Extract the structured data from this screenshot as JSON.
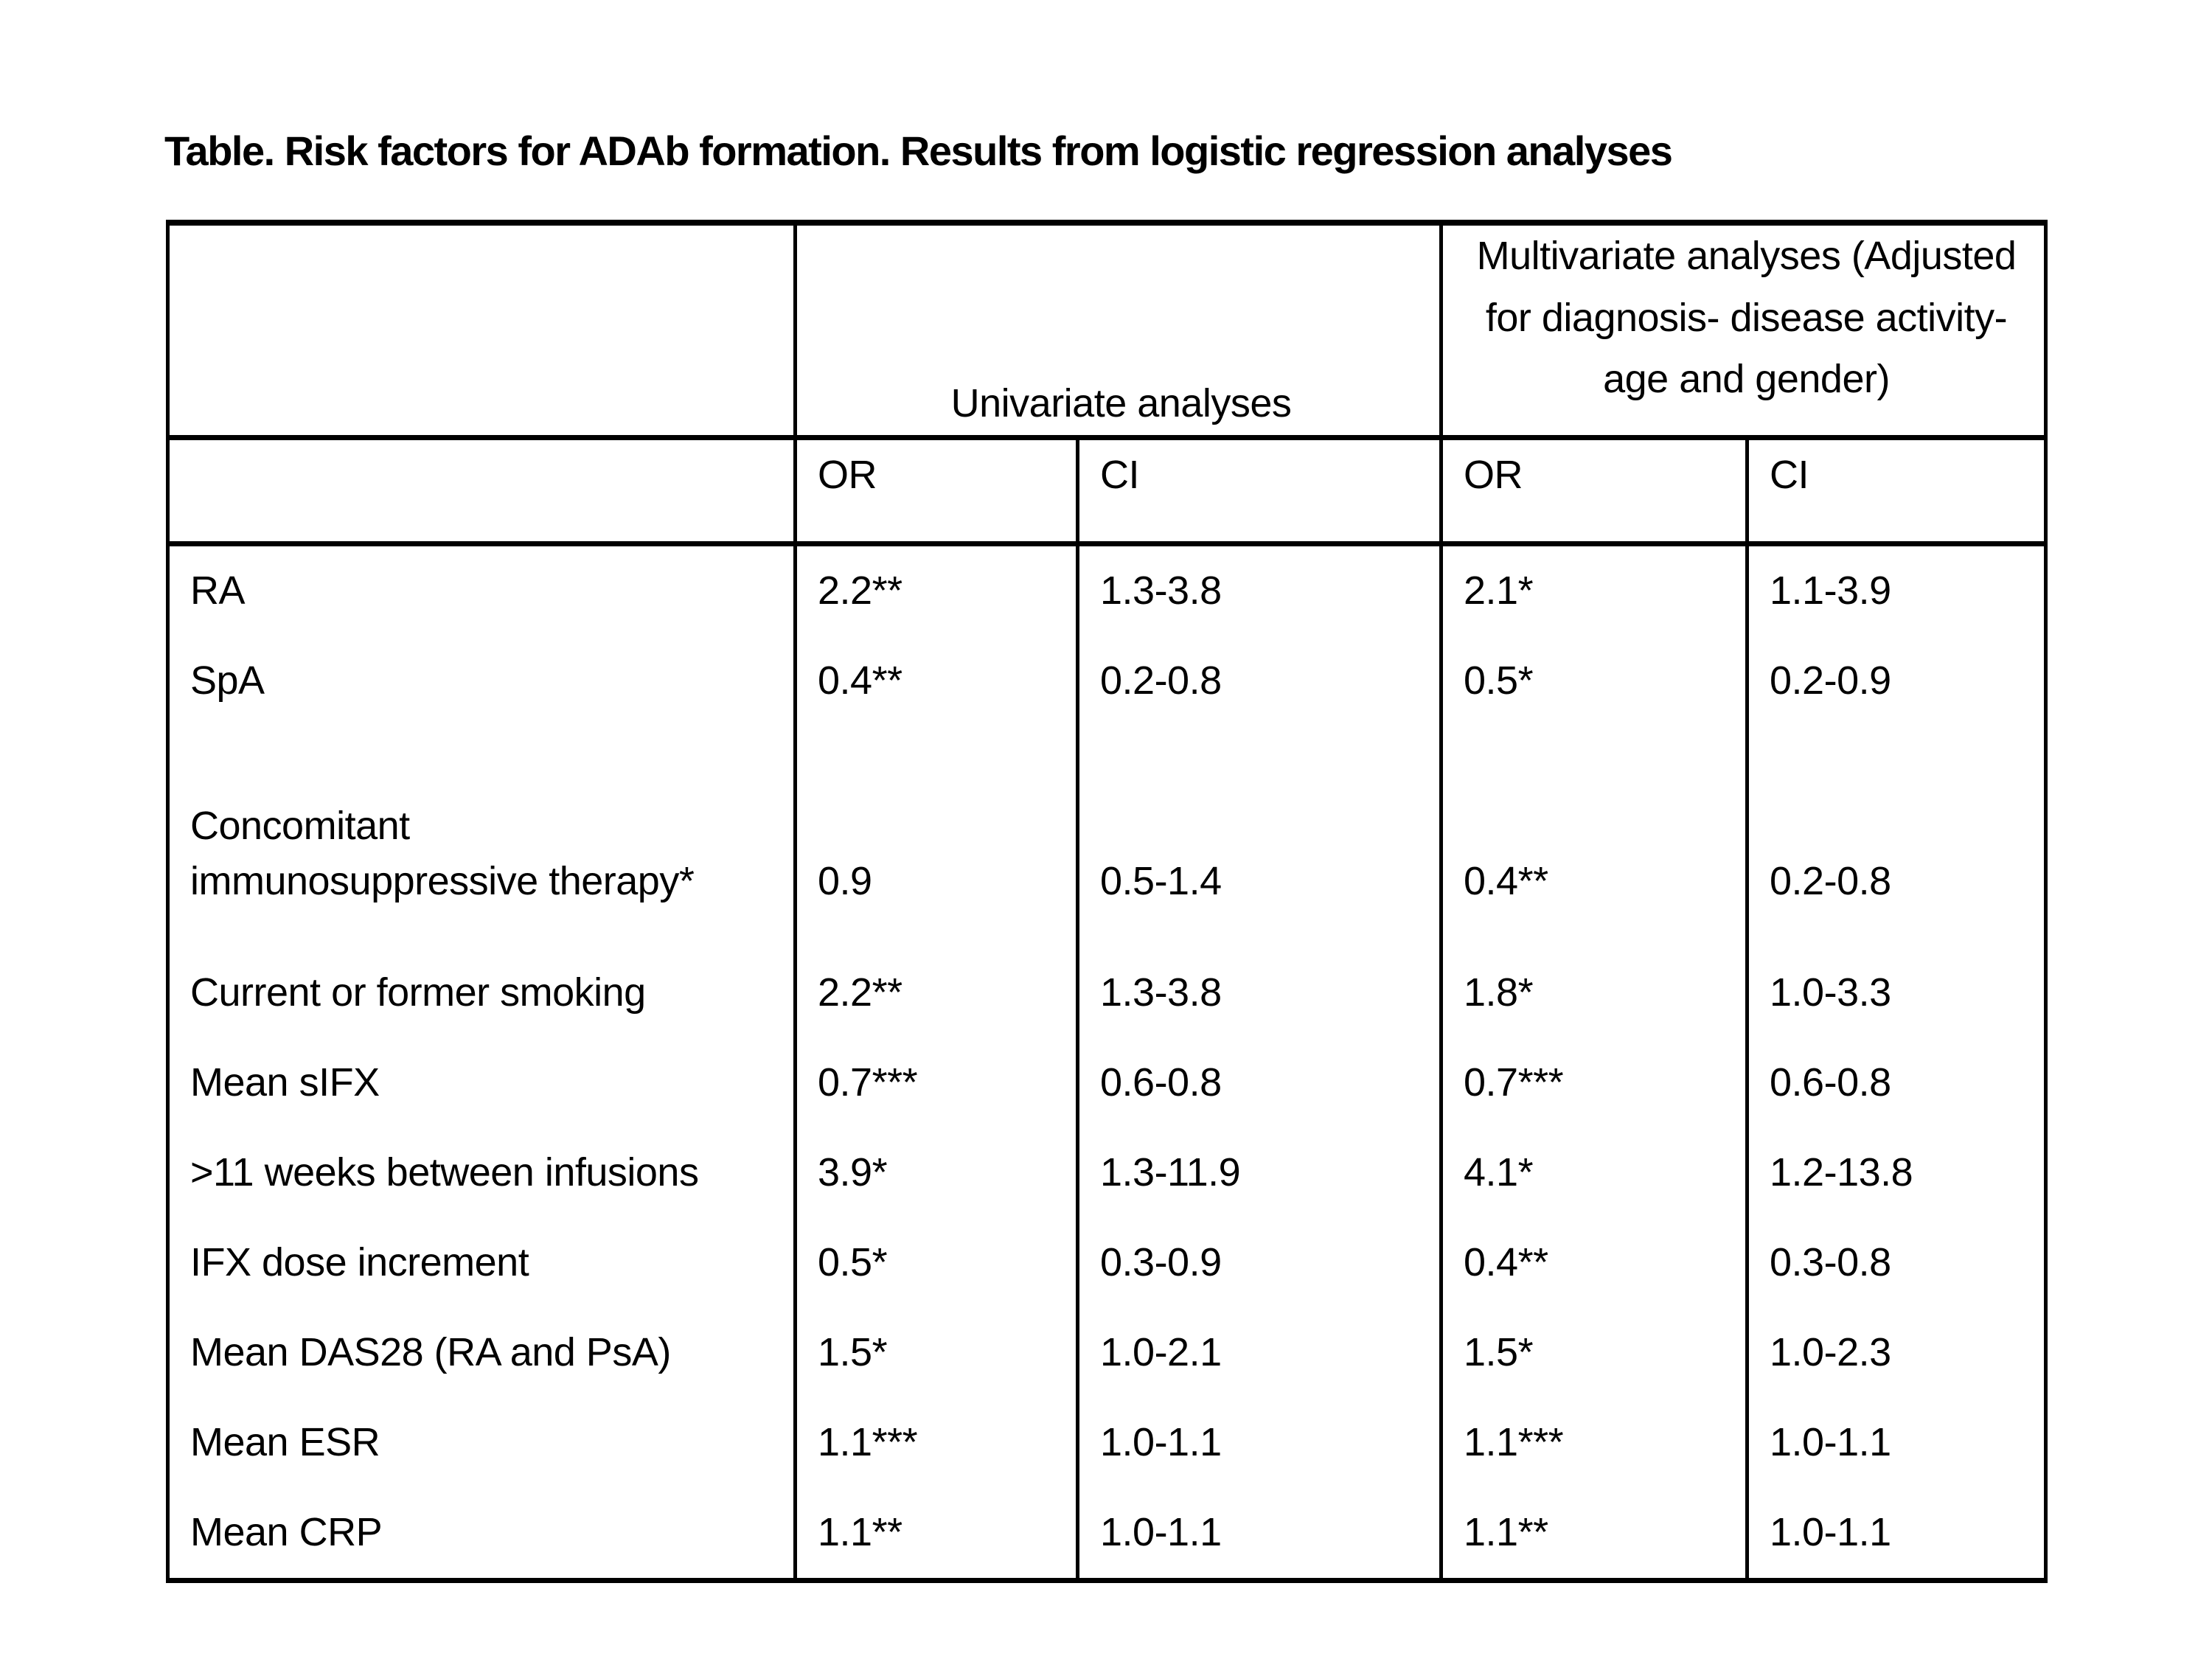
{
  "page": {
    "background_color": "#ffffff",
    "text_color": "#000000",
    "border_color": "#000000"
  },
  "title": "Table. Risk factors for ADAb formation. Results from logistic regression analyses",
  "table": {
    "header_groups": {
      "corner": "",
      "univariate": "Univariate analyses",
      "multivariate": "Multivariate analyses (Adjusted\nfor diagnosis- disease activity-\nage and gender)"
    },
    "sub_headers": [
      "OR",
      "CI",
      "OR",
      "CI"
    ],
    "rows": [
      {
        "label": "RA",
        "uni_or": "2.2**",
        "uni_ci": "1.3-3.8",
        "multi_or": "2.1*",
        "multi_ci": "1.1-3.9"
      },
      {
        "label": "SpA",
        "uni_or": "0.4**",
        "uni_ci": "0.2-0.8",
        "multi_or": "0.5*",
        "multi_ci": "0.2-0.9"
      },
      {
        "label": "Concomitant\nimmunosuppressive therapy*",
        "uni_or": "0.9",
        "uni_ci": "0.5-1.4",
        "multi_or": "0.4**",
        "multi_ci": "0.2-0.8"
      },
      {
        "label": "Current or former smoking",
        "uni_or": "2.2**",
        "uni_ci": "1.3-3.8",
        "multi_or": "1.8*",
        "multi_ci": "1.0-3.3"
      },
      {
        "label": "Mean sIFX",
        "uni_or": "0.7***",
        "uni_ci": "0.6-0.8",
        "multi_or": "0.7***",
        "multi_ci": "0.6-0.8"
      },
      {
        "label": ">11 weeks between infusions",
        "uni_or": "3.9*",
        "uni_ci": "1.3-11.9",
        "multi_or": "4.1*",
        "multi_ci": "1.2-13.8"
      },
      {
        "label": "IFX dose increment",
        "uni_or": "0.5*",
        "uni_ci": "0.3-0.9",
        "multi_or": "0.4**",
        "multi_ci": "0.3-0.8"
      },
      {
        "label": "Mean DAS28 (RA and PsA)",
        "uni_or": "1.5*",
        "uni_ci": "1.0-2.1",
        "multi_or": "1.5*",
        "multi_ci": "1.0-2.3"
      },
      {
        "label": "Mean ESR",
        "uni_or": "1.1***",
        "uni_ci": "1.0-1.1",
        "multi_or": "1.1***",
        "multi_ci": "1.0-1.1"
      },
      {
        "label": "Mean CRP",
        "uni_or": "1.1**",
        "uni_ci": "1.0-1.1",
        "multi_or": "1.1**",
        "multi_ci": "1.0-1.1"
      }
    ]
  }
}
